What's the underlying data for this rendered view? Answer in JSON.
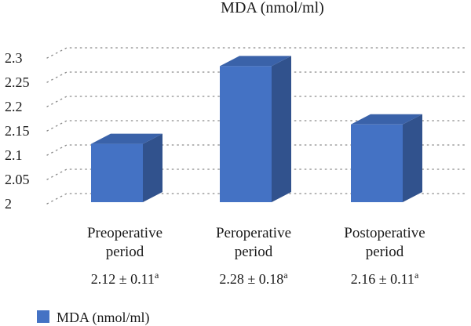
{
  "chart_data": {
    "type": "bar",
    "title": "MDA (nmol/ml)",
    "categories": [
      "Preoperative period",
      "Peroperative period",
      "Postoperative period"
    ],
    "category_lines": [
      [
        "Preoperative",
        "period"
      ],
      [
        "Peroperative",
        "period"
      ],
      [
        "Postoperative",
        "period"
      ]
    ],
    "series": [
      {
        "name": "MDA (nmol/ml)",
        "values": [
          2.12,
          2.28,
          2.16
        ],
        "color": "#4472C4"
      }
    ],
    "value_labels": [
      {
        "text": "2.12 ± 0.11",
        "sup": "a"
      },
      {
        "text": "2.28 ± 0.18",
        "sup": "a"
      },
      {
        "text": "2.16 ± 0.11",
        "sup": "a"
      }
    ],
    "ylim": [
      2,
      2.3
    ],
    "yticks": [
      "2",
      "2.05",
      "2.1",
      "2.15",
      "2.2",
      "2.25",
      "2.3"
    ],
    "grid": true,
    "legend_position": "bottom-left",
    "style": "3d-column"
  }
}
